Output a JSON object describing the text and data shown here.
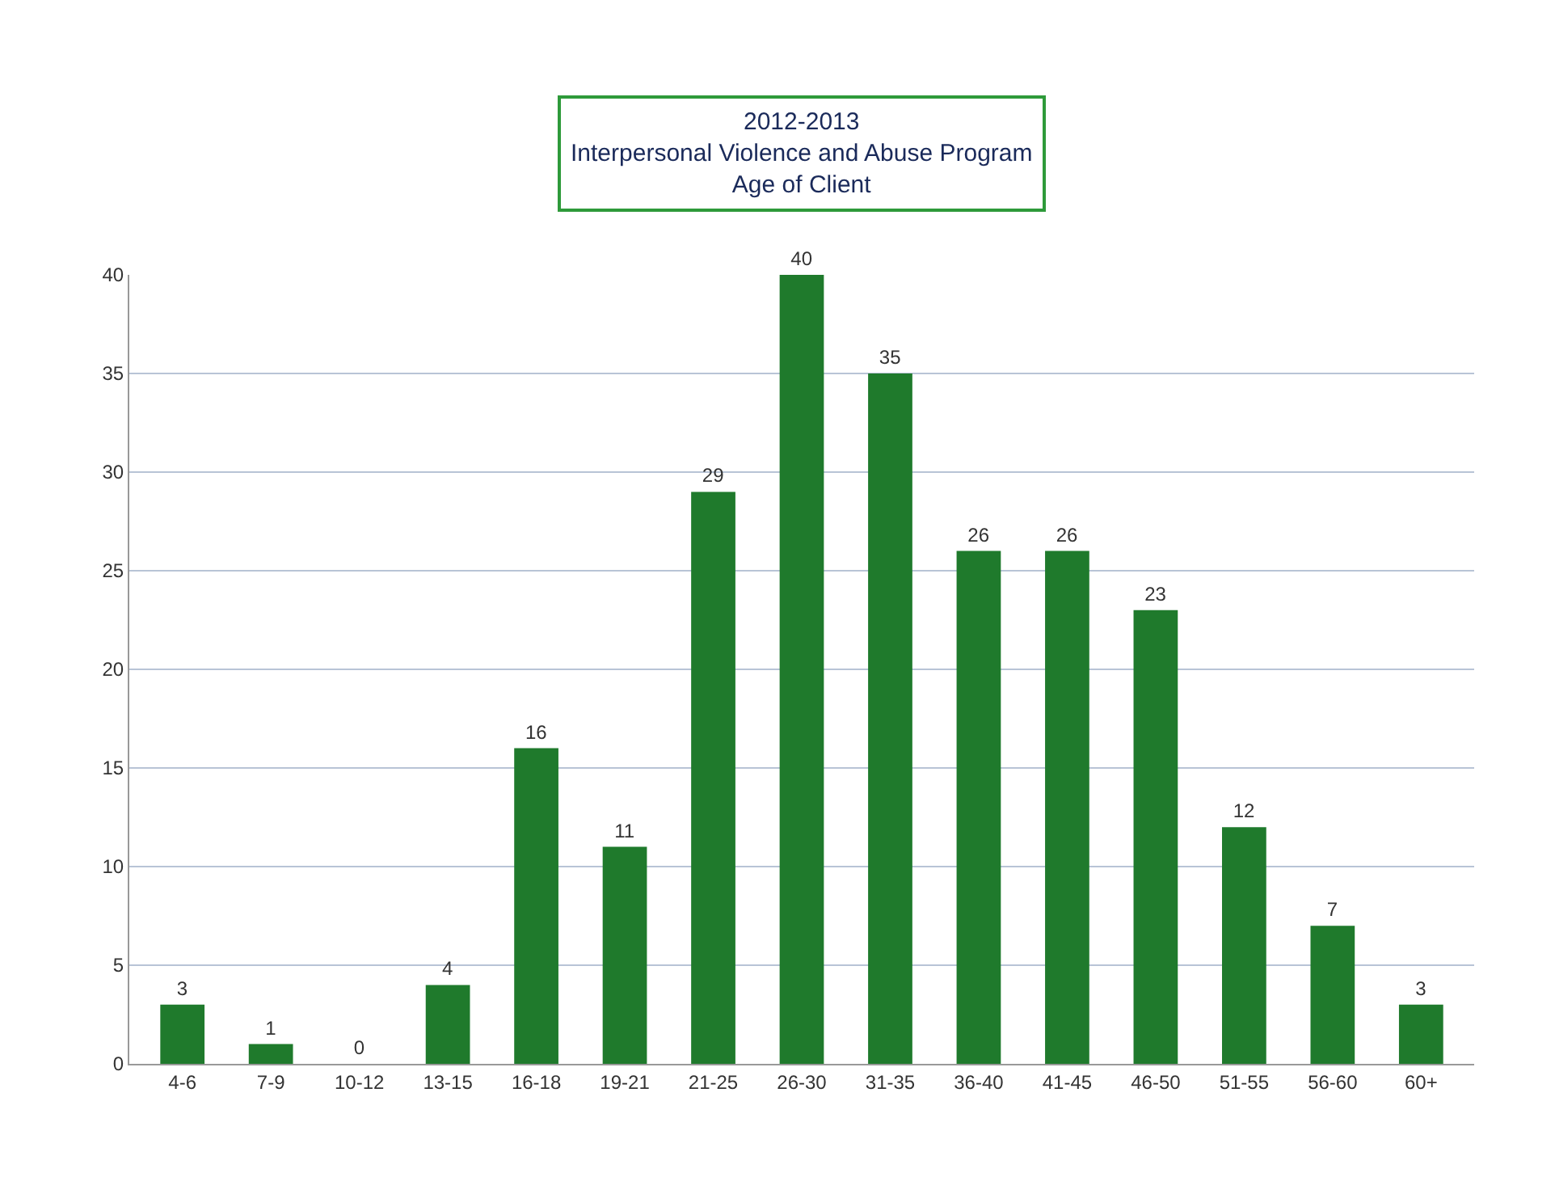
{
  "chart_data": {
    "type": "bar",
    "title": "2012-2013\nInterpersonal Violence and Abuse Program\nAge of Client",
    "categories": [
      "4-6",
      "7-9",
      "10-12",
      "13-15",
      "16-18",
      "19-21",
      "21-25",
      "26-30",
      "31-35",
      "36-40",
      "41-45",
      "46-50",
      "51-55",
      "56-60",
      "60+"
    ],
    "values": [
      3,
      1,
      0,
      4,
      16,
      11,
      29,
      40,
      35,
      26,
      26,
      23,
      12,
      7,
      3
    ],
    "color": "#1f7a2c",
    "ylim": [
      0,
      40
    ],
    "yticks": [
      0,
      5,
      10,
      15,
      20,
      25,
      30,
      35,
      40
    ],
    "grid": "y",
    "data_labels": true
  }
}
